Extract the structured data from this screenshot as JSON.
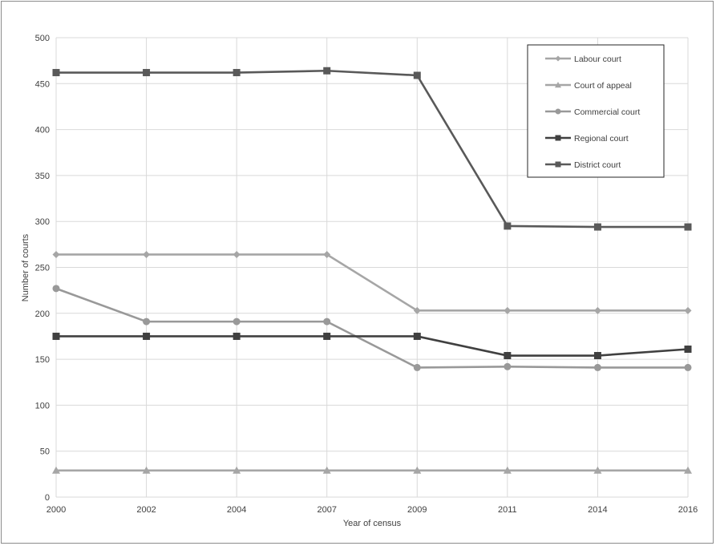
{
  "chart_data": {
    "type": "line",
    "title": "",
    "xlabel": "Year of census",
    "ylabel": "Number of courts",
    "categories": [
      "2000",
      "2002",
      "2004",
      "2007",
      "2009",
      "2011",
      "2014",
      "2016"
    ],
    "ylim": [
      0,
      500
    ],
    "yticks": [
      0,
      50,
      100,
      150,
      200,
      250,
      300,
      350,
      400,
      450,
      500
    ],
    "grid": true,
    "legend_position": "top-right",
    "series": [
      {
        "name": "Labour court",
        "marker": "diamond",
        "color": "#a6a6a6",
        "values": [
          264,
          264,
          264,
          264,
          203,
          203,
          203,
          203
        ]
      },
      {
        "name": "Court of appeal",
        "marker": "triangle",
        "color": "#a6a6a6",
        "values": [
          29,
          29,
          29,
          29,
          29,
          29,
          29,
          29
        ]
      },
      {
        "name": "Commercial court",
        "marker": "circle",
        "color": "#999999",
        "values": [
          227,
          191,
          191,
          191,
          141,
          142,
          141,
          141
        ]
      },
      {
        "name": "Regional court",
        "marker": "square",
        "color": "#404040",
        "values": [
          175,
          175,
          175,
          175,
          175,
          154,
          154,
          161
        ]
      },
      {
        "name": "District court",
        "marker": "square",
        "color": "#595959",
        "values": [
          462,
          462,
          462,
          464,
          459,
          295,
          294,
          294
        ]
      }
    ]
  }
}
